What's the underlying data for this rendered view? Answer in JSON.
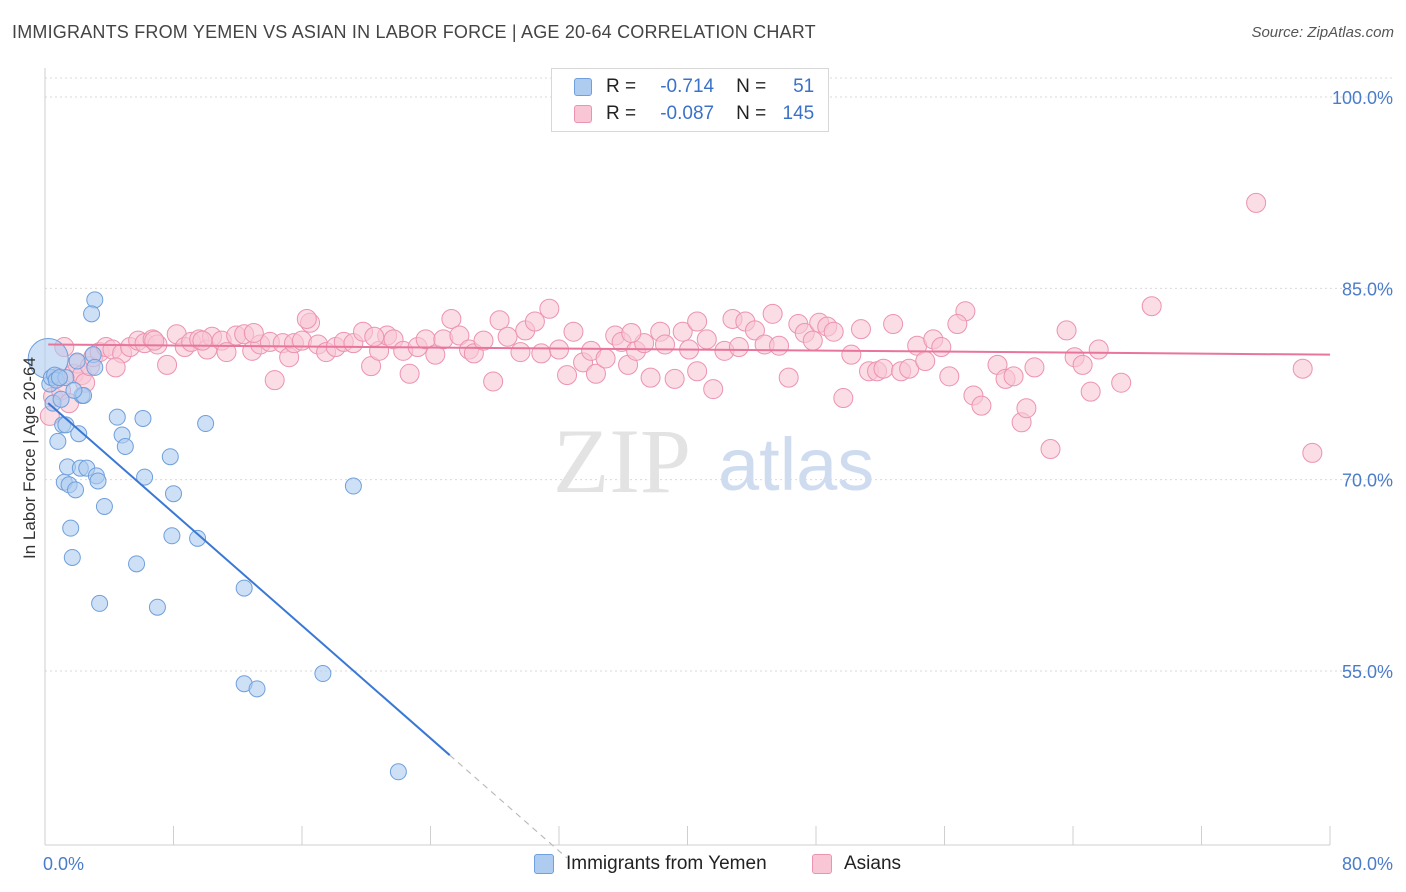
{
  "header": {
    "title": "IMMIGRANTS FROM YEMEN VS ASIAN IN LABOR FORCE | AGE 20-64 CORRELATION CHART",
    "source": "Source: ZipAtlas.com"
  },
  "watermark": {
    "zip": "ZIP",
    "atlas": "atlas"
  },
  "legend": {
    "rows": [
      {
        "r_label": "R =",
        "r_value": "-0.714",
        "n_label": "N =",
        "n_value": "51",
        "color": "#aecbf0",
        "border": "#6f9fdc"
      },
      {
        "r_label": "R =",
        "r_value": "-0.087",
        "n_label": "N =",
        "n_value": "145",
        "color": "#f9c6d6",
        "border": "#ec93b0"
      }
    ]
  },
  "bottom_legend": {
    "items": [
      {
        "label": "Immigrants from Yemen",
        "color": "#aecbf0",
        "border": "#6f9fdc"
      },
      {
        "label": "Asians",
        "color": "#f9c6d6",
        "border": "#ec93b0"
      }
    ]
  },
  "chart_data": {
    "type": "scatter",
    "title": "IMMIGRANTS FROM YEMEN VS ASIAN IN LABOR FORCE | AGE 20-64 CORRELATION CHART",
    "xlabel": "",
    "ylabel": "In Labor Force | Age 20-64",
    "xlim": [
      0,
      80
    ],
    "ylim": [
      42,
      103
    ],
    "y_ticks": [
      {
        "value": 100,
        "label": "100.0%"
      },
      {
        "value": 85,
        "label": "85.0%"
      },
      {
        "value": 70,
        "label": "70.0%"
      },
      {
        "value": 55,
        "label": "55.0%"
      }
    ],
    "x_tick_labels": [
      {
        "value": 0,
        "label": "0.0%"
      },
      {
        "value": 80,
        "label": "80.0%"
      }
    ],
    "grid": true,
    "series": [
      {
        "name": "Immigrants from Yemen",
        "color": "#aecbf0",
        "stroke": "#6f9fdc",
        "trend": {
          "x0": 0.2,
          "y0": 76.0,
          "x1": 25.2,
          "y1": 48.4,
          "dash_to_x": 32.5,
          "color": "#3a78d6"
        },
        "points": [
          [
            0.2,
            79.5
          ],
          [
            0.3,
            77.5
          ],
          [
            0.4,
            78.0
          ],
          [
            0.5,
            76.0
          ],
          [
            0.6,
            78.2
          ],
          [
            0.7,
            77.8
          ],
          [
            0.8,
            73.0
          ],
          [
            1.0,
            76.3
          ],
          [
            1.1,
            74.3
          ],
          [
            1.2,
            69.8
          ],
          [
            1.3,
            78.0
          ],
          [
            1.4,
            71.0
          ],
          [
            1.5,
            69.6
          ],
          [
            1.6,
            66.2
          ],
          [
            1.7,
            63.9
          ],
          [
            1.9,
            69.2
          ],
          [
            2.0,
            79.3
          ],
          [
            2.1,
            73.6
          ],
          [
            2.2,
            70.9
          ],
          [
            2.3,
            76.6
          ],
          [
            2.4,
            76.6
          ],
          [
            2.6,
            70.9
          ],
          [
            3.0,
            79.8
          ],
          [
            3.1,
            78.8
          ],
          [
            3.1,
            84.1
          ],
          [
            3.2,
            70.3
          ],
          [
            3.3,
            69.9
          ],
          [
            3.4,
            60.3
          ],
          [
            3.7,
            67.9
          ],
          [
            4.5,
            74.9
          ],
          [
            4.8,
            73.5
          ],
          [
            5.0,
            72.6
          ],
          [
            5.7,
            63.4
          ],
          [
            6.1,
            74.8
          ],
          [
            6.2,
            70.2
          ],
          [
            7.0,
            60.0
          ],
          [
            7.8,
            71.8
          ],
          [
            7.9,
            65.6
          ],
          [
            8.0,
            68.9
          ],
          [
            9.5,
            65.4
          ],
          [
            10.0,
            74.4
          ],
          [
            12.4,
            61.5
          ],
          [
            12.4,
            54.0
          ],
          [
            13.2,
            53.6
          ],
          [
            17.3,
            54.8
          ],
          [
            19.2,
            69.5
          ],
          [
            22.0,
            47.1
          ],
          [
            2.9,
            83.0
          ],
          [
            1.3,
            74.3
          ],
          [
            0.9,
            78.0
          ],
          [
            1.8,
            77.0
          ]
        ]
      },
      {
        "name": "Asians",
        "color": "#f9c6d6",
        "stroke": "#ec93b0",
        "trend": {
          "x0": 0.2,
          "y0": 80.6,
          "x1": 80.0,
          "y1": 79.8,
          "color": "#e8759b"
        },
        "points": [
          [
            0.3,
            75.0
          ],
          [
            0.5,
            76.5
          ],
          [
            0.8,
            78.0
          ],
          [
            1.0,
            77.0
          ],
          [
            1.5,
            76.0
          ],
          [
            1.8,
            78.3
          ],
          [
            2.0,
            79.1
          ],
          [
            2.3,
            78.2
          ],
          [
            2.5,
            77.6
          ],
          [
            2.8,
            78.9
          ],
          [
            3.0,
            79.6
          ],
          [
            3.4,
            80.0
          ],
          [
            3.8,
            80.4
          ],
          [
            4.2,
            80.2
          ],
          [
            4.8,
            79.9
          ],
          [
            5.3,
            80.4
          ],
          [
            5.8,
            80.9
          ],
          [
            6.2,
            80.7
          ],
          [
            6.7,
            81.0
          ],
          [
            7.0,
            80.6
          ],
          [
            7.6,
            79.0
          ],
          [
            8.2,
            81.4
          ],
          [
            8.7,
            80.4
          ],
          [
            9.1,
            80.8
          ],
          [
            9.6,
            81.0
          ],
          [
            10.1,
            80.2
          ],
          [
            10.4,
            81.2
          ],
          [
            11.0,
            80.9
          ],
          [
            11.3,
            80.0
          ],
          [
            11.9,
            81.3
          ],
          [
            12.4,
            81.4
          ],
          [
            12.9,
            80.1
          ],
          [
            13.4,
            80.6
          ],
          [
            14.0,
            80.8
          ],
          [
            14.3,
            77.8
          ],
          [
            14.8,
            80.7
          ],
          [
            15.2,
            79.6
          ],
          [
            15.5,
            80.7
          ],
          [
            16.0,
            80.9
          ],
          [
            16.5,
            82.3
          ],
          [
            17.0,
            80.6
          ],
          [
            17.5,
            80.0
          ],
          [
            18.1,
            80.4
          ],
          [
            18.6,
            80.8
          ],
          [
            19.2,
            80.7
          ],
          [
            19.8,
            81.6
          ],
          [
            20.3,
            78.9
          ],
          [
            20.8,
            80.1
          ],
          [
            21.3,
            81.3
          ],
          [
            21.7,
            81.0
          ],
          [
            22.3,
            80.1
          ],
          [
            22.7,
            78.3
          ],
          [
            23.2,
            80.4
          ],
          [
            23.7,
            81.0
          ],
          [
            24.3,
            79.8
          ],
          [
            24.8,
            81.0
          ],
          [
            25.3,
            82.6
          ],
          [
            25.8,
            81.3
          ],
          [
            26.4,
            80.2
          ],
          [
            26.7,
            79.9
          ],
          [
            27.3,
            80.9
          ],
          [
            27.9,
            77.7
          ],
          [
            28.3,
            82.5
          ],
          [
            28.8,
            81.2
          ],
          [
            29.6,
            80.0
          ],
          [
            29.9,
            81.7
          ],
          [
            30.5,
            82.4
          ],
          [
            30.9,
            79.9
          ],
          [
            31.4,
            83.4
          ],
          [
            32.0,
            80.2
          ],
          [
            32.5,
            78.2
          ],
          [
            32.9,
            81.6
          ],
          [
            33.5,
            79.2
          ],
          [
            34.0,
            80.1
          ],
          [
            34.3,
            78.3
          ],
          [
            34.9,
            79.5
          ],
          [
            35.5,
            81.3
          ],
          [
            35.9,
            80.8
          ],
          [
            36.3,
            79.0
          ],
          [
            36.8,
            80.1
          ],
          [
            37.3,
            80.7
          ],
          [
            37.7,
            78.0
          ],
          [
            38.3,
            81.6
          ],
          [
            38.6,
            80.6
          ],
          [
            39.2,
            77.9
          ],
          [
            39.7,
            81.6
          ],
          [
            40.1,
            80.2
          ],
          [
            40.6,
            78.5
          ],
          [
            41.2,
            81.0
          ],
          [
            41.6,
            77.1
          ],
          [
            42.3,
            80.1
          ],
          [
            42.8,
            82.6
          ],
          [
            43.2,
            80.4
          ],
          [
            43.6,
            82.4
          ],
          [
            44.2,
            81.7
          ],
          [
            44.8,
            80.6
          ],
          [
            45.3,
            83.0
          ],
          [
            45.7,
            80.5
          ],
          [
            46.3,
            78.0
          ],
          [
            46.9,
            82.2
          ],
          [
            47.3,
            81.5
          ],
          [
            47.8,
            80.9
          ],
          [
            48.2,
            82.3
          ],
          [
            48.7,
            82.0
          ],
          [
            49.1,
            81.6
          ],
          [
            49.7,
            76.4
          ],
          [
            50.2,
            79.8
          ],
          [
            50.8,
            81.8
          ],
          [
            51.3,
            78.5
          ],
          [
            51.8,
            78.5
          ],
          [
            52.2,
            78.7
          ],
          [
            52.8,
            82.2
          ],
          [
            53.3,
            78.5
          ],
          [
            53.8,
            78.7
          ],
          [
            54.3,
            80.5
          ],
          [
            54.8,
            79.3
          ],
          [
            55.3,
            81.0
          ],
          [
            55.8,
            80.4
          ],
          [
            56.3,
            78.1
          ],
          [
            57.3,
            83.2
          ],
          [
            57.8,
            76.6
          ],
          [
            58.3,
            75.8
          ],
          [
            59.3,
            79.0
          ],
          [
            59.8,
            77.9
          ],
          [
            60.3,
            78.1
          ],
          [
            60.8,
            74.5
          ],
          [
            61.1,
            75.6
          ],
          [
            61.6,
            78.8
          ],
          [
            62.6,
            72.4
          ],
          [
            63.6,
            81.7
          ],
          [
            64.1,
            79.6
          ],
          [
            64.6,
            79.0
          ],
          [
            65.1,
            76.9
          ],
          [
            65.6,
            80.2
          ],
          [
            67.0,
            77.6
          ],
          [
            68.9,
            83.6
          ],
          [
            75.4,
            91.7
          ],
          [
            78.3,
            78.7
          ],
          [
            78.9,
            72.1
          ],
          [
            56.8,
            82.2
          ],
          [
            40.6,
            82.4
          ],
          [
            36.5,
            81.5
          ],
          [
            20.5,
            81.2
          ],
          [
            13.0,
            81.5
          ],
          [
            6.8,
            80.9
          ],
          [
            1.2,
            80.4
          ],
          [
            4.4,
            78.8
          ],
          [
            9.8,
            80.9
          ],
          [
            16.3,
            82.6
          ]
        ]
      }
    ]
  }
}
